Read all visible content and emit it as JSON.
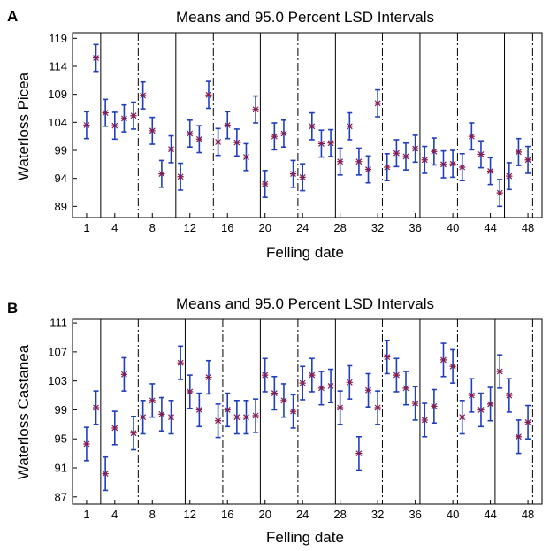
{
  "chart_data": [
    {
      "type": "scatter",
      "panel_label": "A",
      "title": "Means and 95.0 Percent LSD Intervals",
      "xlabel": "Felling date",
      "ylabel": "Waterloss Picea",
      "x_ticks": [
        "1",
        "4",
        "8",
        "12",
        "16",
        "20",
        "24",
        "28",
        "32",
        "36",
        "40",
        "44",
        "48"
      ],
      "y_ticks": [
        "89",
        "94",
        "99",
        "104",
        "109",
        "114",
        "119"
      ],
      "ylim": [
        87,
        120
      ],
      "xlim": [
        -0.5,
        49.5
      ],
      "half_interval": 2.4,
      "means": [
        103.5,
        115.5,
        105.7,
        103.4,
        104.7,
        105.2,
        108.8,
        102.5,
        94.8,
        99.2,
        94.3,
        102.0,
        101.0,
        108.9,
        100.5,
        103.5,
        100.4,
        97.8,
        106.3,
        93.0,
        101.5,
        102.0,
        94.8,
        94.2,
        103.3,
        100.2,
        100.3,
        97.0,
        103.3,
        97.0,
        95.6,
        107.4,
        96.0,
        98.5,
        97.9,
        99.3,
        97.3,
        98.8,
        96.5,
        96.6,
        96.0,
        101.5,
        98.3,
        95.3,
        91.4,
        94.4,
        98.7,
        97.3
      ],
      "separators": [
        {
          "after": 2,
          "style": "solid"
        },
        {
          "after": 6,
          "style": "dashdot"
        },
        {
          "after": 10,
          "style": "solid"
        },
        {
          "after": 14,
          "style": "dashdot"
        },
        {
          "after": 19,
          "style": "solid"
        },
        {
          "after": 23,
          "style": "dashdot"
        },
        {
          "after": 27,
          "style": "solid"
        },
        {
          "after": 32,
          "style": "dashdot"
        },
        {
          "after": 36,
          "style": "solid"
        },
        {
          "after": 40,
          "style": "dashdot"
        },
        {
          "after": 45,
          "style": "solid"
        },
        {
          "after": 48,
          "style": "dashdot"
        }
      ],
      "colors": {
        "interval": "#1f3fbf",
        "marker": "#8a1a4a",
        "separator": "#000000"
      }
    },
    {
      "type": "scatter",
      "panel_label": "B",
      "title": "Means and 95.0 Percent LSD Intervals",
      "xlabel": "Felling date",
      "ylabel": "Waterloss Castanea",
      "x_ticks": [
        "1",
        "4",
        "8",
        "12",
        "16",
        "20",
        "24",
        "28",
        "32",
        "36",
        "40",
        "44",
        "48"
      ],
      "y_ticks": [
        "87",
        "91",
        "95",
        "99",
        "103",
        "107",
        "111"
      ],
      "ylim": [
        86,
        111.5
      ],
      "xlim": [
        -0.5,
        49.5
      ],
      "half_interval": 2.3,
      "means": [
        94.3,
        99.3,
        90.2,
        96.5,
        103.9,
        95.8,
        98.0,
        100.3,
        98.4,
        98.0,
        105.5,
        101.5,
        99.0,
        103.5,
        97.5,
        99.0,
        98.0,
        98.0,
        98.2,
        103.8,
        101.3,
        100.3,
        98.8,
        102.7,
        103.8,
        102.0,
        102.3,
        99.3,
        102.8,
        93.0,
        101.7,
        99.3,
        106.3,
        103.8,
        102.0,
        99.9,
        97.6,
        99.5,
        105.9,
        105.0,
        98.0,
        101.0,
        99.0,
        99.8,
        104.3,
        101.0,
        95.3,
        97.3
      ],
      "separators": [
        {
          "after": 2,
          "style": "solid"
        },
        {
          "after": 6,
          "style": "dashdot"
        },
        {
          "after": 11,
          "style": "solid"
        },
        {
          "after": 15,
          "style": "dashdot"
        },
        {
          "after": 19,
          "style": "solid"
        },
        {
          "after": 23,
          "style": "dashdot"
        },
        {
          "after": 27,
          "style": "solid"
        },
        {
          "after": 32,
          "style": "dashdot"
        },
        {
          "after": 36,
          "style": "solid"
        },
        {
          "after": 40,
          "style": "dashdot"
        },
        {
          "after": 44,
          "style": "solid"
        },
        {
          "after": 48,
          "style": "dashdot"
        }
      ],
      "colors": {
        "interval": "#1f3fbf",
        "marker": "#8a1a4a",
        "separator": "#000000"
      }
    }
  ]
}
